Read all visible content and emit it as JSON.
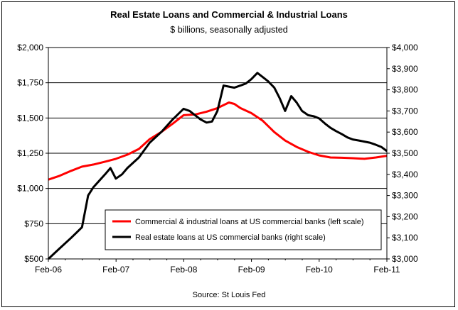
{
  "chart_data": {
    "type": "line",
    "title": "Real Estate Loans and Commercial & Industrial Loans",
    "subtitle": "$ billions, seasonally adjusted",
    "source": "Source:  St Louis Fed",
    "x_tick_labels": [
      "Feb-06",
      "Feb-07",
      "Feb-08",
      "Feb-09",
      "Feb-10",
      "Feb-11"
    ],
    "x_range": [
      2006.083,
      2011.083
    ],
    "left_axis": {
      "ylim": [
        500,
        2000
      ],
      "ticks": [
        500,
        750,
        1000,
        1250,
        1500,
        1750,
        2000
      ],
      "tick_labels": [
        "$500",
        "$750",
        "$1,000",
        "$1,250",
        "$1,500",
        "$1,750",
        "$2,000"
      ]
    },
    "right_axis": {
      "ylim": [
        3000,
        4000
      ],
      "ticks": [
        3000,
        3100,
        3200,
        3300,
        3400,
        3500,
        3600,
        3700,
        3800,
        3900,
        4000
      ],
      "tick_labels": [
        "$3,000",
        "$3,100",
        "$3,200",
        "$3,300",
        "$3,400",
        "$3,500",
        "$3,600",
        "$3,700",
        "$3,800",
        "$3,900",
        "$4,000"
      ]
    },
    "grid": "horizontal",
    "legend_position": "bottom-right",
    "series": [
      {
        "name": "Commercial & industrial loans at US commercial banks (left scale)",
        "axis": "left",
        "color": "#ff0000",
        "x": [
          2006.083,
          2006.25,
          2006.42,
          2006.58,
          2006.75,
          2006.92,
          2007.08,
          2007.25,
          2007.42,
          2007.58,
          2007.75,
          2007.92,
          2008.08,
          2008.25,
          2008.42,
          2008.58,
          2008.75,
          2008.83,
          2008.92,
          2009.08,
          2009.25,
          2009.42,
          2009.58,
          2009.75,
          2009.92,
          2010.08,
          2010.25,
          2010.42,
          2010.58,
          2010.75,
          2010.92,
          2011.083
        ],
        "values": [
          1063,
          1090,
          1125,
          1155,
          1170,
          1190,
          1210,
          1240,
          1280,
          1350,
          1400,
          1460,
          1520,
          1525,
          1545,
          1570,
          1610,
          1600,
          1570,
          1535,
          1480,
          1400,
          1340,
          1295,
          1260,
          1235,
          1220,
          1218,
          1215,
          1210,
          1220,
          1232
        ]
      },
      {
        "name": "Real estate loans at US commercial banks (right scale)",
        "axis": "right",
        "color": "#000000",
        "x": [
          2006.083,
          2006.25,
          2006.42,
          2006.5,
          2006.58,
          2006.67,
          2006.75,
          2006.92,
          2007.0,
          2007.08,
          2007.17,
          2007.25,
          2007.42,
          2007.58,
          2007.75,
          2007.92,
          2008.08,
          2008.17,
          2008.25,
          2008.33,
          2008.42,
          2008.5,
          2008.58,
          2008.67,
          2008.75,
          2008.83,
          2008.92,
          2009.0,
          2009.08,
          2009.17,
          2009.25,
          2009.33,
          2009.42,
          2009.5,
          2009.58,
          2009.67,
          2009.75,
          2009.83,
          2009.92,
          2010.0,
          2010.08,
          2010.17,
          2010.25,
          2010.33,
          2010.42,
          2010.5,
          2010.58,
          2010.67,
          2010.75,
          2010.83,
          2010.92,
          2011.0,
          2011.083
        ],
        "values": [
          3000,
          3050,
          3100,
          3125,
          3150,
          3300,
          3340,
          3400,
          3430,
          3380,
          3400,
          3430,
          3480,
          3550,
          3600,
          3660,
          3710,
          3700,
          3680,
          3660,
          3645,
          3650,
          3700,
          3820,
          3815,
          3810,
          3820,
          3830,
          3850,
          3880,
          3860,
          3840,
          3810,
          3760,
          3700,
          3770,
          3740,
          3700,
          3680,
          3675,
          3665,
          3640,
          3620,
          3605,
          3590,
          3575,
          3565,
          3560,
          3555,
          3550,
          3540,
          3530,
          3510
        ]
      }
    ]
  }
}
